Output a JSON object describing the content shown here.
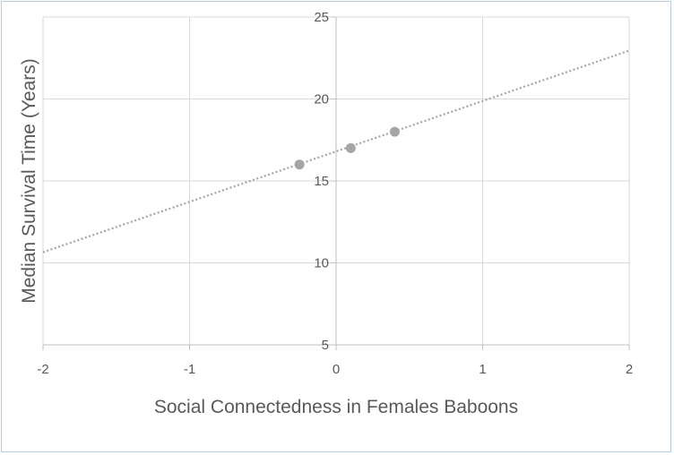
{
  "chart_data": {
    "type": "scatter",
    "title": "",
    "xlabel": "Social Connectedness  in Females Baboons",
    "ylabel": "Median Survival Time (Years)",
    "xlim": [
      -2,
      2
    ],
    "ylim": [
      5,
      25
    ],
    "x_ticks": [
      -2,
      -1,
      0,
      1,
      2
    ],
    "y_ticks": [
      5,
      10,
      15,
      20,
      25
    ],
    "x_tick_labels": [
      "-2",
      "-1",
      "0",
      "1",
      "2"
    ],
    "y_tick_labels": [
      "5",
      "10",
      "15",
      "20",
      "25"
    ],
    "grid": true,
    "legend": "none",
    "series": [
      {
        "x": [
          -0.25,
          0.1,
          0.4
        ],
        "y": [
          16.0,
          17.0,
          18.0
        ],
        "color": "#a5a5a5"
      }
    ],
    "trendline": {
      "type": "linear",
      "x": [
        -2,
        2
      ],
      "y": [
        10.65,
        22.95
      ],
      "style": "dotted",
      "color": "#a5a5a5"
    },
    "colors": {
      "grid": "#d9d9d9",
      "axis": "#bfbfbf",
      "text": "#595959",
      "border": "#b8cce4"
    }
  }
}
